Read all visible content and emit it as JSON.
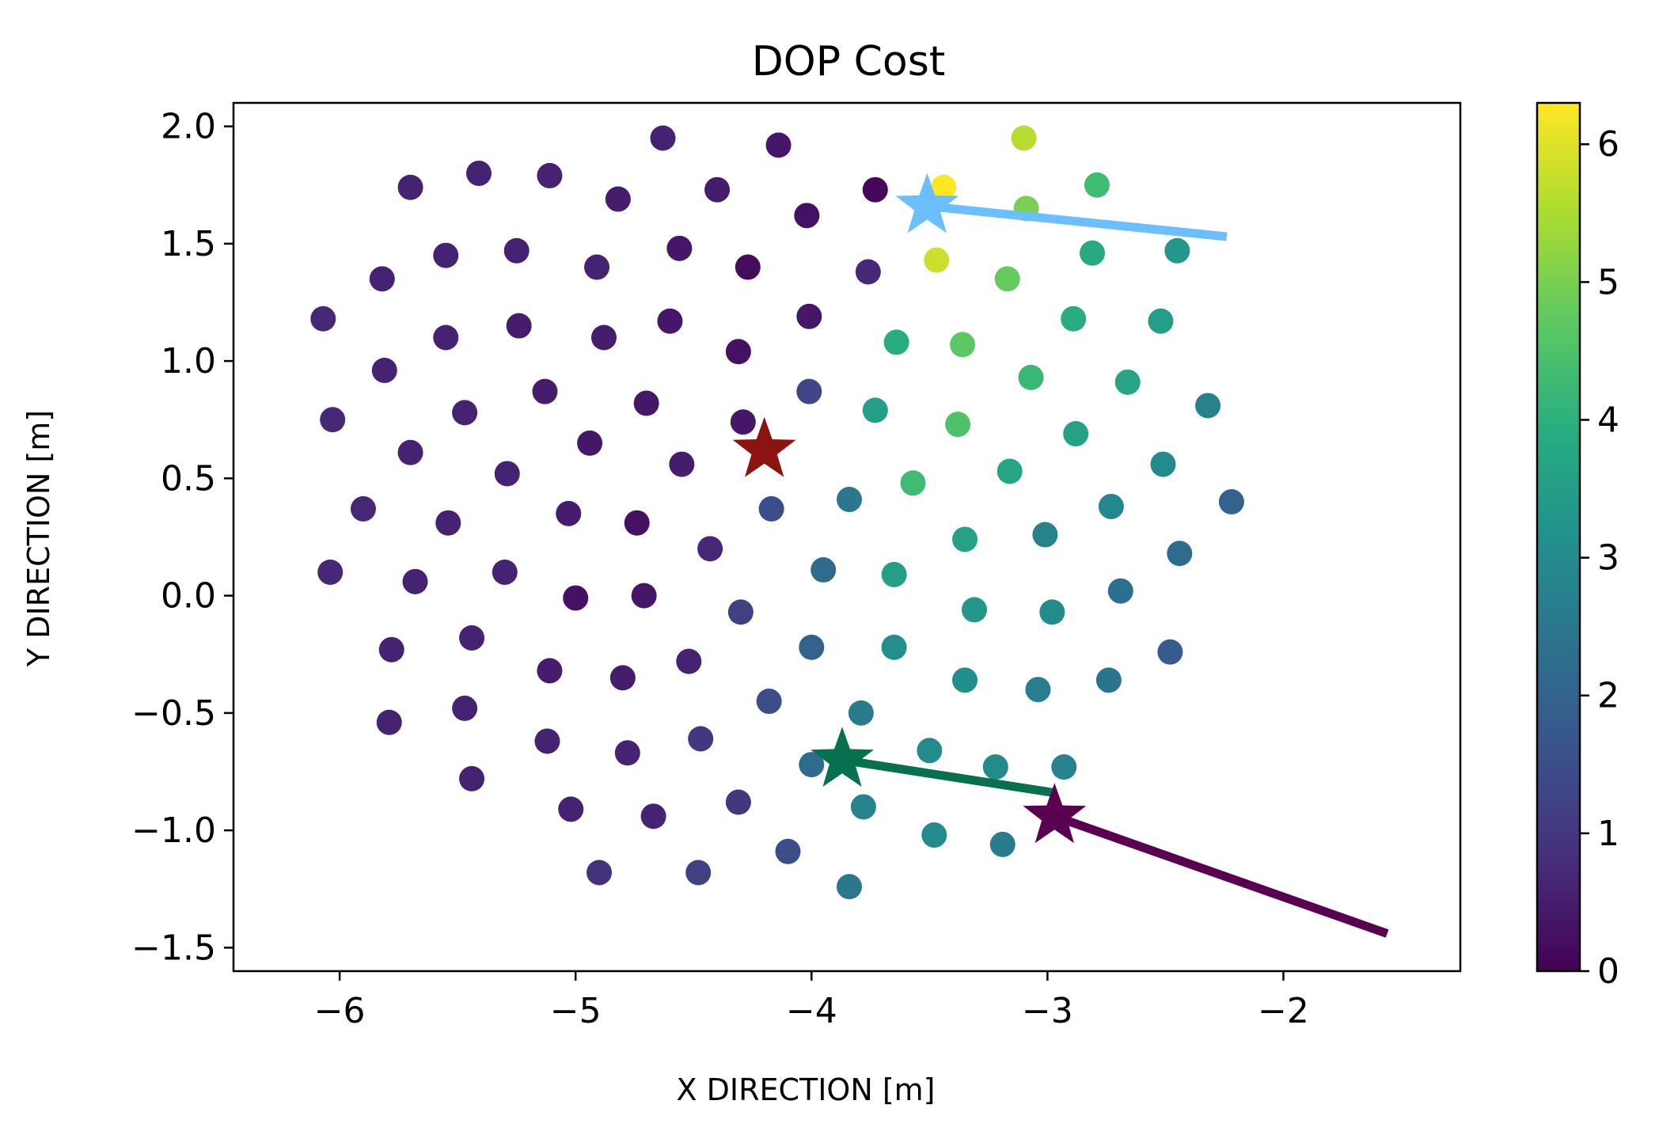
{
  "chart_data": {
    "type": "scatter",
    "title": "DOP Cost",
    "xlabel": "X DIRECTION [m]",
    "ylabel": "Y DIRECTION [m]",
    "xlim": [
      -6.45,
      -1.25
    ],
    "ylim": [
      -1.6,
      2.1
    ],
    "xticks": [
      -6,
      -5,
      -4,
      -3,
      -2
    ],
    "xtick_labels": [
      "−6",
      "−5",
      "−4",
      "−3",
      "−2"
    ],
    "yticks": [
      -1.5,
      -1.0,
      -0.5,
      0.0,
      0.5,
      1.0,
      1.5,
      2.0
    ],
    "ytick_labels": [
      "−1.5",
      "−1.0",
      "−0.5",
      "0.0",
      "0.5",
      "1.0",
      "1.5",
      "2.0"
    ],
    "grid": false,
    "colorbar": {
      "colormap": "viridis",
      "range": [
        0,
        6.3
      ],
      "ticks": [
        0,
        1,
        2,
        3,
        4,
        5,
        6
      ],
      "tick_labels": [
        "0",
        "1",
        "2",
        "3",
        "4",
        "5",
        "6"
      ]
    },
    "points": [
      {
        "x": -4.63,
        "y": 1.95,
        "c": 0.6
      },
      {
        "x": -4.14,
        "y": 1.92,
        "c": 0.4
      },
      {
        "x": -5.7,
        "y": 1.74,
        "c": 0.6
      },
      {
        "x": -5.41,
        "y": 1.8,
        "c": 0.6
      },
      {
        "x": -5.11,
        "y": 1.79,
        "c": 0.6
      },
      {
        "x": -4.82,
        "y": 1.69,
        "c": 0.5
      },
      {
        "x": -4.4,
        "y": 1.73,
        "c": 0.5
      },
      {
        "x": -4.02,
        "y": 1.62,
        "c": 0.3
      },
      {
        "x": -3.73,
        "y": 1.73,
        "c": 0.1
      },
      {
        "x": -3.44,
        "y": 1.74,
        "c": 6.3
      },
      {
        "x": -3.1,
        "y": 1.95,
        "c": 5.6
      },
      {
        "x": -3.09,
        "y": 1.65,
        "c": 5.0
      },
      {
        "x": -2.79,
        "y": 1.75,
        "c": 4.3
      },
      {
        "x": -5.82,
        "y": 1.35,
        "c": 0.6
      },
      {
        "x": -5.55,
        "y": 1.45,
        "c": 0.6
      },
      {
        "x": -5.25,
        "y": 1.47,
        "c": 0.6
      },
      {
        "x": -4.91,
        "y": 1.4,
        "c": 0.6
      },
      {
        "x": -4.56,
        "y": 1.48,
        "c": 0.4
      },
      {
        "x": -4.27,
        "y": 1.4,
        "c": 0.2
      },
      {
        "x": -3.76,
        "y": 1.38,
        "c": 0.7
      },
      {
        "x": -3.47,
        "y": 1.43,
        "c": 5.8
      },
      {
        "x": -3.17,
        "y": 1.35,
        "c": 4.8
      },
      {
        "x": -2.81,
        "y": 1.46,
        "c": 3.8
      },
      {
        "x": -2.45,
        "y": 1.47,
        "c": 3.3
      },
      {
        "x": -6.07,
        "y": 1.18,
        "c": 0.7
      },
      {
        "x": -5.55,
        "y": 1.1,
        "c": 0.6
      },
      {
        "x": -5.24,
        "y": 1.15,
        "c": 0.5
      },
      {
        "x": -4.88,
        "y": 1.1,
        "c": 0.5
      },
      {
        "x": -4.6,
        "y": 1.17,
        "c": 0.4
      },
      {
        "x": -4.31,
        "y": 1.04,
        "c": 0.3
      },
      {
        "x": -4.01,
        "y": 1.19,
        "c": 0.4
      },
      {
        "x": -3.64,
        "y": 1.08,
        "c": 3.9
      },
      {
        "x": -3.36,
        "y": 1.07,
        "c": 4.7
      },
      {
        "x": -2.89,
        "y": 1.18,
        "c": 3.9
      },
      {
        "x": -2.52,
        "y": 1.17,
        "c": 3.5
      },
      {
        "x": -5.81,
        "y": 0.96,
        "c": 0.6
      },
      {
        "x": -5.13,
        "y": 0.87,
        "c": 0.5
      },
      {
        "x": -4.7,
        "y": 0.82,
        "c": 0.4
      },
      {
        "x": -4.01,
        "y": 0.87,
        "c": 1.3
      },
      {
        "x": -3.73,
        "y": 0.79,
        "c": 3.5
      },
      {
        "x": -3.38,
        "y": 0.73,
        "c": 4.5
      },
      {
        "x": -3.07,
        "y": 0.93,
        "c": 4.2
      },
      {
        "x": -2.66,
        "y": 0.91,
        "c": 3.7
      },
      {
        "x": -2.32,
        "y": 0.81,
        "c": 2.8
      },
      {
        "x": -6.03,
        "y": 0.75,
        "c": 0.7
      },
      {
        "x": -5.7,
        "y": 0.61,
        "c": 0.6
      },
      {
        "x": -5.47,
        "y": 0.78,
        "c": 0.6
      },
      {
        "x": -4.94,
        "y": 0.65,
        "c": 0.4
      },
      {
        "x": -4.29,
        "y": 0.74,
        "c": 0.4
      },
      {
        "x": -5.29,
        "y": 0.52,
        "c": 0.6
      },
      {
        "x": -4.55,
        "y": 0.56,
        "c": 0.5
      },
      {
        "x": -3.57,
        "y": 0.48,
        "c": 4.3
      },
      {
        "x": -3.16,
        "y": 0.53,
        "c": 3.7
      },
      {
        "x": -2.88,
        "y": 0.69,
        "c": 3.6
      },
      {
        "x": -2.51,
        "y": 0.56,
        "c": 3.0
      },
      {
        "x": -5.9,
        "y": 0.37,
        "c": 0.7
      },
      {
        "x": -5.54,
        "y": 0.31,
        "c": 0.6
      },
      {
        "x": -5.03,
        "y": 0.35,
        "c": 0.5
      },
      {
        "x": -4.74,
        "y": 0.31,
        "c": 0.3
      },
      {
        "x": -4.17,
        "y": 0.37,
        "c": 1.5
      },
      {
        "x": -3.84,
        "y": 0.41,
        "c": 2.5
      },
      {
        "x": -3.35,
        "y": 0.24,
        "c": 3.6
      },
      {
        "x": -3.01,
        "y": 0.26,
        "c": 2.8
      },
      {
        "x": -2.73,
        "y": 0.38,
        "c": 2.9
      },
      {
        "x": -2.22,
        "y": 0.4,
        "c": 2.0
      },
      {
        "x": -6.04,
        "y": 0.1,
        "c": 0.7
      },
      {
        "x": -5.68,
        "y": 0.06,
        "c": 0.6
      },
      {
        "x": -5.3,
        "y": 0.1,
        "c": 0.6
      },
      {
        "x": -5.0,
        "y": -0.01,
        "c": 0.3
      },
      {
        "x": -4.71,
        "y": 0.0,
        "c": 0.4
      },
      {
        "x": -4.43,
        "y": 0.2,
        "c": 0.7
      },
      {
        "x": -3.95,
        "y": 0.11,
        "c": 2.2
      },
      {
        "x": -3.65,
        "y": 0.09,
        "c": 3.5
      },
      {
        "x": -2.44,
        "y": 0.18,
        "c": 2.2
      },
      {
        "x": -4.3,
        "y": -0.07,
        "c": 1.2
      },
      {
        "x": -3.31,
        "y": -0.06,
        "c": 3.3
      },
      {
        "x": -2.98,
        "y": -0.07,
        "c": 3.0
      },
      {
        "x": -2.69,
        "y": 0.02,
        "c": 2.3
      },
      {
        "x": -5.78,
        "y": -0.23,
        "c": 0.6
      },
      {
        "x": -5.44,
        "y": -0.18,
        "c": 0.6
      },
      {
        "x": -5.11,
        "y": -0.32,
        "c": 0.5
      },
      {
        "x": -4.8,
        "y": -0.35,
        "c": 0.5
      },
      {
        "x": -4.52,
        "y": -0.28,
        "c": 0.6
      },
      {
        "x": -4.0,
        "y": -0.22,
        "c": 2.0
      },
      {
        "x": -3.65,
        "y": -0.22,
        "c": 3.1
      },
      {
        "x": -3.35,
        "y": -0.36,
        "c": 3.1
      },
      {
        "x": -3.04,
        "y": -0.4,
        "c": 2.7
      },
      {
        "x": -2.74,
        "y": -0.36,
        "c": 2.4
      },
      {
        "x": -2.48,
        "y": -0.24,
        "c": 1.8
      },
      {
        "x": -5.79,
        "y": -0.54,
        "c": 0.6
      },
      {
        "x": -5.47,
        "y": -0.48,
        "c": 0.6
      },
      {
        "x": -5.12,
        "y": -0.62,
        "c": 0.6
      },
      {
        "x": -4.78,
        "y": -0.67,
        "c": 0.6
      },
      {
        "x": -4.47,
        "y": -0.61,
        "c": 1.0
      },
      {
        "x": -4.18,
        "y": -0.45,
        "c": 1.5
      },
      {
        "x": -3.79,
        "y": -0.5,
        "c": 2.6
      },
      {
        "x": -4.0,
        "y": -0.72,
        "c": 2.2
      },
      {
        "x": -3.5,
        "y": -0.66,
        "c": 3.0
      },
      {
        "x": -3.22,
        "y": -0.73,
        "c": 3.0
      },
      {
        "x": -2.93,
        "y": -0.73,
        "c": 2.8
      },
      {
        "x": -5.44,
        "y": -0.78,
        "c": 0.6
      },
      {
        "x": -5.02,
        "y": -0.91,
        "c": 0.6
      },
      {
        "x": -4.67,
        "y": -0.94,
        "c": 0.6
      },
      {
        "x": -4.31,
        "y": -0.88,
        "c": 1.0
      },
      {
        "x": -3.78,
        "y": -0.9,
        "c": 2.8
      },
      {
        "x": -4.1,
        "y": -1.09,
        "c": 1.5
      },
      {
        "x": -3.48,
        "y": -1.02,
        "c": 3.0
      },
      {
        "x": -3.19,
        "y": -1.06,
        "c": 2.6
      },
      {
        "x": -4.9,
        "y": -1.18,
        "c": 0.9
      },
      {
        "x": -4.48,
        "y": -1.18,
        "c": 1.2
      },
      {
        "x": -3.84,
        "y": -1.24,
        "c": 2.5
      }
    ],
    "paths": [
      {
        "color": "#6cbfff",
        "points": [
          [
            -3.51,
            1.66
          ],
          [
            -2.24,
            1.53
          ]
        ],
        "star": [
          -3.51,
          1.66
        ]
      },
      {
        "color": "#07704e",
        "points": [
          [
            -3.87,
            -0.7
          ],
          [
            -2.97,
            -0.84
          ]
        ],
        "star": [
          -3.87,
          -0.7
        ]
      },
      {
        "color": "#5a0050",
        "points": [
          [
            -2.97,
            -0.94
          ],
          [
            -1.56,
            -1.44
          ]
        ],
        "star": [
          -2.97,
          -0.94
        ]
      }
    ],
    "stars": [
      {
        "x": -4.2,
        "y": 0.62,
        "color": "#8b1411"
      }
    ]
  }
}
